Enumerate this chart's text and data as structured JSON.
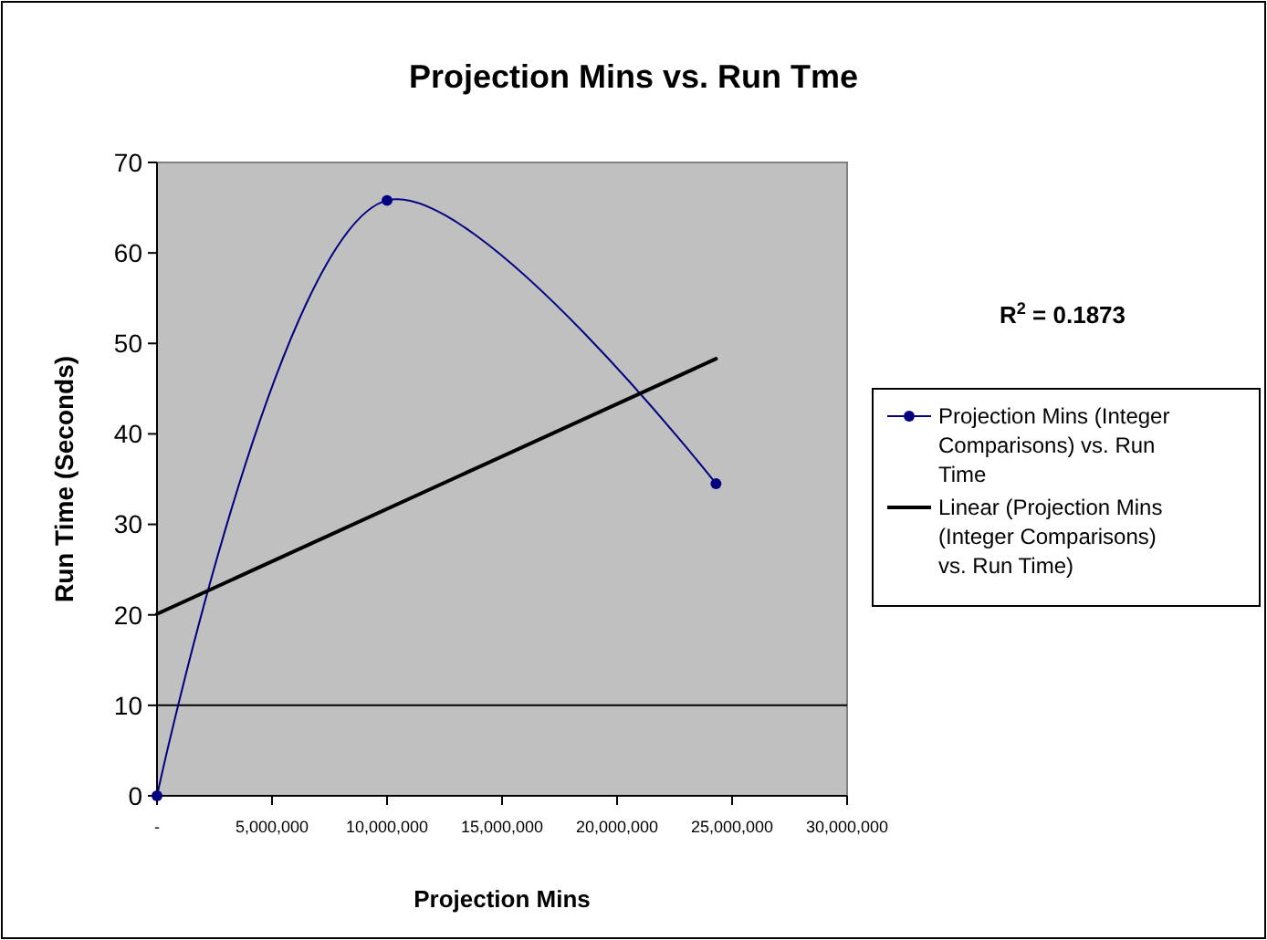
{
  "chart_data": {
    "type": "line",
    "title": "Projection Mins vs. Run Tme",
    "xlabel": "Projection Mins",
    "ylabel": "Run Time (Seconds)",
    "annotations": [
      "R$^{2}$ = 0.1873"
    ],
    "x": [
      0,
      10000000,
      24300000
    ],
    "series": [
      {
        "name": "Projection Mins (Integer Comparisons) vs. Run Time",
        "color": "#000080",
        "values": [
          0,
          65.8,
          34.5
        ],
        "marker": "circle"
      },
      {
        "name": "Linear (Projection Mins (Integer Comparisons) vs. Run Time)",
        "color": "#000000",
        "type": "line",
        "x": [
          0,
          24300000
        ],
        "values": [
          20.1,
          48.3
        ],
        "marker": "none"
      }
    ],
    "xlim": [
      0,
      30000000
    ],
    "xticks": [
      {
        "value": 0,
        "label": "-"
      },
      {
        "value": 5000000,
        "label": "5,000,000"
      },
      {
        "value": 10000000,
        "label": "10,000,000"
      },
      {
        "value": 15000000,
        "label": "15,000,000"
      },
      {
        "value": 20000000,
        "label": "20,000,000"
      },
      {
        "value": 25000000,
        "label": "25,000,000"
      },
      {
        "value": 30000000,
        "label": "30,000,000"
      }
    ],
    "ylim": [
      0,
      70
    ],
    "yticks": [
      0,
      10,
      20,
      30,
      40,
      50,
      60,
      70
    ],
    "ref_lines": [
      {
        "axis": "y",
        "value": 10,
        "color": "#000000"
      }
    ],
    "grid": false,
    "legend": "right",
    "line_style": "solid"
  }
}
